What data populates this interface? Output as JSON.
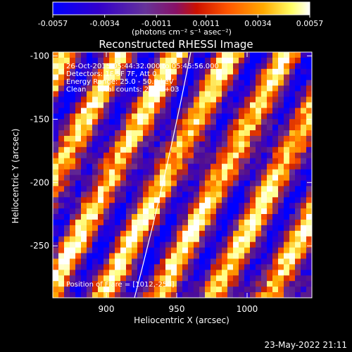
{
  "colorbar": {
    "tick_labels": [
      "-0.0057",
      "-0.0034",
      "-0.0011",
      "0.0011",
      "0.0034",
      "0.0057"
    ],
    "tick_values": [
      -0.0057,
      -0.0034,
      -0.0011,
      0.0011,
      0.0034,
      0.0057
    ],
    "range": [
      -0.0057,
      0.0057
    ],
    "units_label": "(photons cm⁻² s⁻¹ asec⁻²)"
  },
  "chart_data": {
    "type": "heatmap",
    "title": "Reconstructed RHESSI Image",
    "xlabel": "Heliocentric X (arcsec)",
    "ylabel": "Heliocentric Y (arcsec)",
    "xlim": [
      862,
      1046
    ],
    "ylim": [
      -291,
      -97
    ],
    "x_ticks": [
      900,
      950,
      1000
    ],
    "y_ticks": [
      -100,
      -150,
      -200,
      -250
    ],
    "x_tick_labels": [
      "900",
      "950",
      "1000"
    ],
    "y_tick_labels": [
      "-100",
      "-150",
      "-200",
      "-250"
    ],
    "grid": false,
    "colormap": [
      "#0000ff",
      "#3300cc",
      "#55108a",
      "#663399",
      "#cc2200",
      "#ff5500",
      "#ffaa00",
      "#ffff80",
      "#ffffff"
    ],
    "info_lines": [
      "26-Oct-2015 05:44:32.000 to 05:45:56.000",
      "Detectors: 1F 5F 7F, Att 0",
      "Energy Range: 25.0 - 50.0 keV",
      "Clean     Total counts: 2.70E+03"
    ],
    "flare_position_label": "Position of Flare = [1012,-250]",
    "limb_curve": [
      [
        920,
        -291
      ],
      [
        960,
        -97
      ]
    ]
  },
  "footer": {
    "timestamp": "23-May-2022 21:11"
  }
}
